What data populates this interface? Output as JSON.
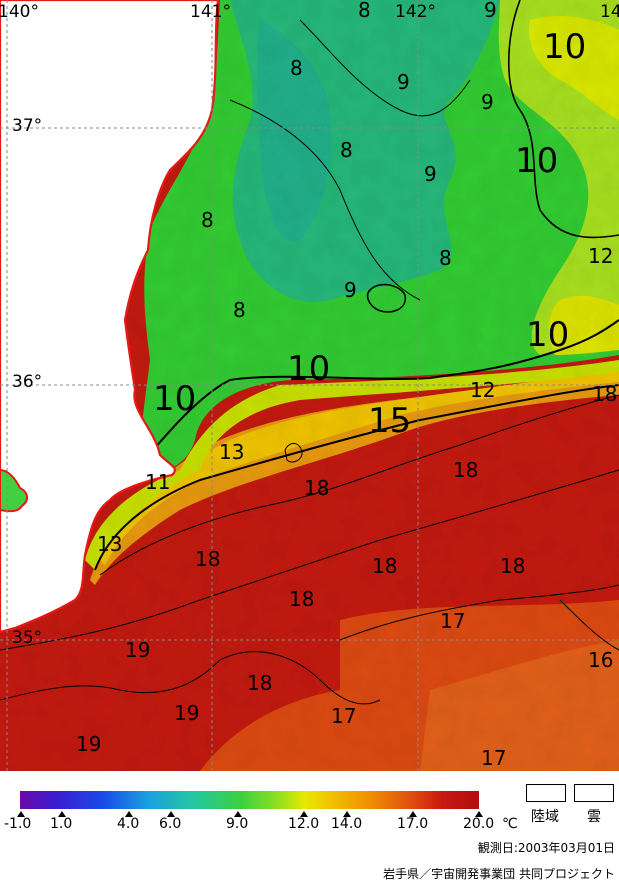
{
  "map": {
    "lon_labels": [
      "140°",
      "141°",
      "142°",
      "14"
    ],
    "lat_labels": [
      "37°",
      "36°",
      "35°"
    ],
    "contour_labels": [
      {
        "text": "8"
      },
      {
        "text": "9"
      },
      {
        "text": "8"
      },
      {
        "text": "9"
      },
      {
        "text": "9"
      },
      {
        "text": "10"
      },
      {
        "text": "8"
      },
      {
        "text": "9"
      },
      {
        "text": "10"
      },
      {
        "text": "8"
      },
      {
        "text": "8"
      },
      {
        "text": "12"
      },
      {
        "text": "9"
      },
      {
        "text": "8"
      },
      {
        "text": "10"
      },
      {
        "text": "10"
      },
      {
        "text": "10"
      },
      {
        "text": "12"
      },
      {
        "text": "18"
      },
      {
        "text": "15"
      },
      {
        "text": "13"
      },
      {
        "text": "18"
      },
      {
        "text": "11"
      },
      {
        "text": "18"
      },
      {
        "text": "13"
      },
      {
        "text": "18"
      },
      {
        "text": "18"
      },
      {
        "text": "18"
      },
      {
        "text": "18"
      },
      {
        "text": "17"
      },
      {
        "text": "19"
      },
      {
        "text": "16"
      },
      {
        "text": "18"
      },
      {
        "text": "19"
      },
      {
        "text": "17"
      },
      {
        "text": "19"
      },
      {
        "text": "17"
      }
    ]
  },
  "legend": {
    "ticks": [
      "-1.0",
      "1.0",
      "4.0",
      "6.0",
      "9.0",
      "12.0",
      "14.0",
      "17.0",
      "20.0"
    ],
    "unit": "℃",
    "land_label": "陸域",
    "cloud_label": "雲"
  },
  "observation_date": "観測日:2003年03月01日",
  "credit": "岩手県／宇宙開発事業団 共同プロジェクト"
}
